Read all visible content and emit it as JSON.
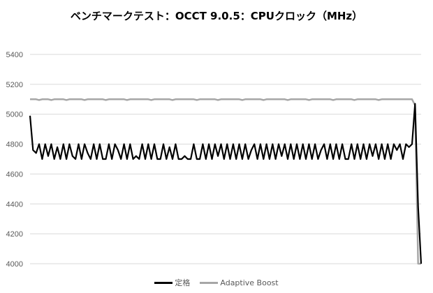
{
  "chart_data": {
    "type": "line",
    "title": "ベンチマークテスト：OCCT 9.0.5：CPUクロック（MHz）",
    "xlabel": "",
    "ylabel": "",
    "ylim": [
      4000,
      5400
    ],
    "yticks": [
      4000,
      4200,
      4400,
      4600,
      4800,
      5000,
      5200,
      5400
    ],
    "grid": true,
    "legend": "bottom",
    "series": [
      {
        "name": "定格",
        "color": "#000000",
        "values": [
          4990,
          4760,
          4740,
          4800,
          4700,
          4800,
          4720,
          4800,
          4700,
          4780,
          4700,
          4800,
          4700,
          4800,
          4720,
          4700,
          4800,
          4700,
          4800,
          4740,
          4700,
          4800,
          4700,
          4800,
          4700,
          4700,
          4800,
          4700,
          4800,
          4760,
          4700,
          4800,
          4700,
          4800,
          4700,
          4720,
          4700,
          4800,
          4700,
          4800,
          4700,
          4800,
          4700,
          4700,
          4800,
          4700,
          4780,
          4700,
          4800,
          4700,
          4700,
          4720,
          4700,
          4700,
          4800,
          4700,
          4700,
          4800,
          4700,
          4800,
          4700,
          4800,
          4720,
          4800,
          4700,
          4800,
          4700,
          4800,
          4700,
          4800,
          4700,
          4800,
          4700,
          4760,
          4800,
          4700,
          4800,
          4700,
          4800,
          4700,
          4800,
          4700,
          4800,
          4720,
          4800,
          4700,
          4800,
          4700,
          4800,
          4700,
          4800,
          4700,
          4800,
          4700,
          4800,
          4700,
          4760,
          4800,
          4700,
          4800,
          4700,
          4800,
          4700,
          4800,
          4700,
          4700,
          4800,
          4700,
          4800,
          4700,
          4800,
          4700,
          4800,
          4720,
          4800,
          4700,
          4800,
          4700,
          4800,
          4700,
          4800,
          4760,
          4800,
          4700,
          4800,
          4780,
          4800,
          5070,
          4380,
          4000
        ]
      },
      {
        "name": "Adaptive Boost",
        "color": "#a6a6a6",
        "values": [
          5100,
          5100,
          5100,
          5095,
          5100,
          5100,
          5100,
          5095,
          5100,
          5100,
          5100,
          5100,
          5095,
          5100,
          5100,
          5100,
          5100,
          5100,
          5095,
          5100,
          5100,
          5100,
          5100,
          5100,
          5100,
          5095,
          5100,
          5100,
          5100,
          5100,
          5100,
          5100,
          5095,
          5100,
          5100,
          5100,
          5100,
          5100,
          5100,
          5100,
          5095,
          5100,
          5100,
          5100,
          5100,
          5100,
          5100,
          5095,
          5100,
          5100,
          5100,
          5100,
          5100,
          5100,
          5100,
          5095,
          5100,
          5100,
          5100,
          5100,
          5100,
          5100,
          5095,
          5100,
          5100,
          5100,
          5100,
          5100,
          5100,
          5100,
          5095,
          5100,
          5100,
          5100,
          5100,
          5100,
          5100,
          5095,
          5100,
          5100,
          5100,
          5100,
          5100,
          5100,
          5100,
          5095,
          5100,
          5100,
          5100,
          5100,
          5100,
          5100,
          5095,
          5100,
          5100,
          5100,
          5100,
          5100,
          5100,
          5100,
          5095,
          5100,
          5100,
          5100,
          5100,
          5100,
          5100,
          5095,
          5100,
          5100,
          5100,
          5100,
          5100,
          5100,
          5100,
          5095,
          5100,
          5100,
          5100,
          5100,
          5100,
          5100,
          5100,
          5100,
          5100,
          5100,
          5100,
          5060,
          4000,
          4000
        ]
      }
    ]
  }
}
